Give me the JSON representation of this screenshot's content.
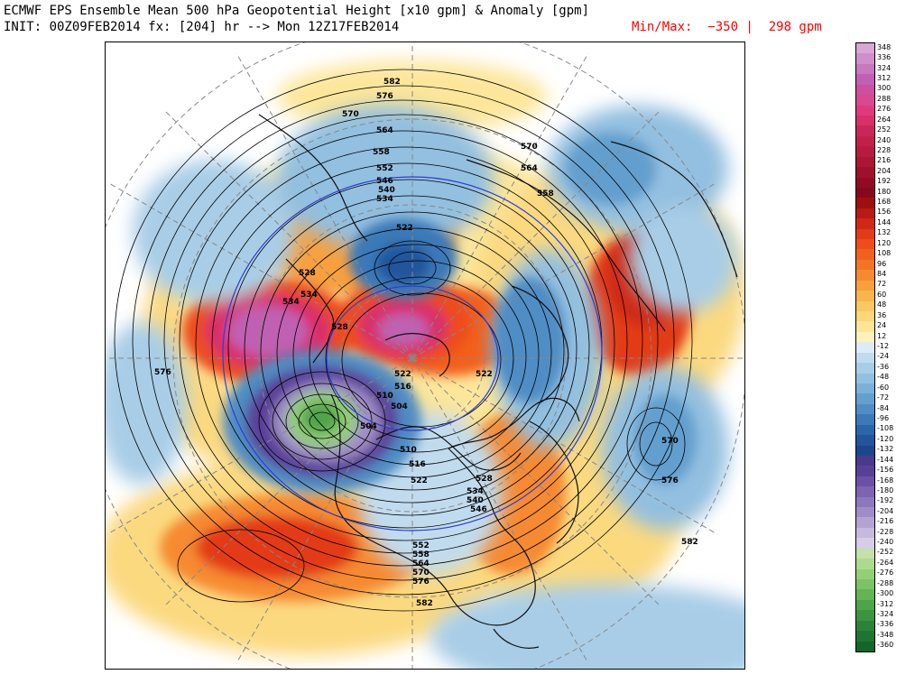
{
  "header": {
    "title_line1": "ECMWF EPS Ensemble Mean 500 hPa Geopotential Height [x10 gpm] & Anomaly [gpm]",
    "title_line2": "INIT: 00Z09FEB2014 fx: [204] hr --> Mon 12Z17FEB2014",
    "minmax_label": "Min/Max:  −350 |  298 gpm"
  },
  "colorbar": {
    "labels": [
      "348",
      "336",
      "324",
      "312",
      "300",
      "288",
      "276",
      "264",
      "252",
      "240",
      "228",
      "216",
      "204",
      "192",
      "180",
      "168",
      "156",
      "144",
      "132",
      "120",
      "108",
      "96",
      "84",
      "72",
      "60",
      "48",
      "36",
      "24",
      "12",
      "-12",
      "-24",
      "-36",
      "-48",
      "-60",
      "-72",
      "-84",
      "-96",
      "-108",
      "-120",
      "-132",
      "-144",
      "-156",
      "-168",
      "-180",
      "-192",
      "-204",
      "-216",
      "-228",
      "-240",
      "-252",
      "-264",
      "-276",
      "-288",
      "-300",
      "-312",
      "-324",
      "-336",
      "-348",
      "-360"
    ],
    "colors": [
      "#d9a6d6",
      "#cf8fcb",
      "#c778bf",
      "#c060b2",
      "#cc4fa0",
      "#d94890",
      "#e03a7f",
      "#d92f6a",
      "#cc2658",
      "#c21f4b",
      "#b81a40",
      "#ad1535",
      "#a0102c",
      "#920b24",
      "#87081c",
      "#9e1010",
      "#b81a14",
      "#cf2916",
      "#e33a17",
      "#ee4c1a",
      "#f2601e",
      "#f47426",
      "#f68a30",
      "#f8a03c",
      "#f9b54c",
      "#fac760",
      "#fbd779",
      "#fce595",
      "#fdf1bd",
      "#dcebf5",
      "#c1dbee",
      "#a9cde7",
      "#93bfe0",
      "#7cb0d8",
      "#649fce",
      "#4f8dc4",
      "#3b79b8",
      "#2b66ab",
      "#22559c",
      "#1c468b",
      "#4a3a8c",
      "#5a3f99",
      "#6b50a6",
      "#7d63b2",
      "#8e78bd",
      "#a08dc8",
      "#b3a3d3",
      "#c6b9de",
      "#d6cde8",
      "#c5e0a8",
      "#addb8e",
      "#94cf78",
      "#7cc266",
      "#64b456",
      "#4fa44a",
      "#3c9440",
      "#2c8338",
      "#1f7431",
      "#14652a"
    ]
  },
  "map": {
    "contour_labels": [
      "582",
      "576",
      "570",
      "564",
      "558",
      "552",
      "546",
      "540",
      "534",
      "522",
      "528",
      "534",
      "528",
      "522",
      "516",
      "510",
      "504",
      "504",
      "510",
      "516",
      "522",
      "528",
      "534",
      "540",
      "546",
      "552",
      "558",
      "564",
      "570",
      "576",
      "582",
      "570",
      "576",
      "582",
      "576",
      "570",
      "564",
      "558",
      "522",
      "534"
    ]
  }
}
